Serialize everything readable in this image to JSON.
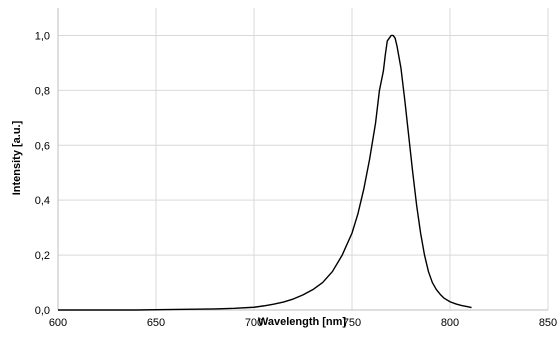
{
  "chart_data": {
    "type": "line",
    "title": "",
    "xlabel": "Wavelength [nm]",
    "ylabel": "Intensity [a.u.]",
    "xlim": [
      600,
      850
    ],
    "ylim": [
      0.0,
      1.1
    ],
    "x_ticks": [
      600,
      650,
      700,
      750,
      800,
      850
    ],
    "x_tick_labels": [
      "600",
      "650",
      "700",
      "750",
      "800",
      "850"
    ],
    "y_ticks": [
      0.0,
      0.2,
      0.4,
      0.6,
      0.8,
      1.0
    ],
    "y_tick_labels": [
      "0,0",
      "0,2",
      "0,4",
      "0,6",
      "0,8",
      "1,0"
    ],
    "grid": true,
    "legend": "none",
    "colors": {
      "line": "#000000",
      "grid": "#d9d9d9",
      "axis": "#bfbfbf"
    },
    "series": [
      {
        "x": [
          600,
          620,
          640,
          660,
          680,
          690,
          700,
          705,
          710,
          715,
          720,
          725,
          730,
          735,
          740,
          745,
          750,
          753,
          756,
          759,
          762,
          764,
          766,
          767,
          768,
          769,
          770,
          771,
          772,
          773,
          775,
          777,
          779,
          781,
          783,
          785,
          787,
          789,
          791,
          793,
          795,
          797,
          800,
          803,
          806,
          809,
          811
        ],
        "y": [
          0.0,
          0.0,
          0.0,
          0.002,
          0.004,
          0.006,
          0.01,
          0.015,
          0.021,
          0.029,
          0.04,
          0.055,
          0.074,
          0.1,
          0.14,
          0.2,
          0.28,
          0.35,
          0.44,
          0.55,
          0.68,
          0.8,
          0.87,
          0.93,
          0.98,
          0.99,
          1.0,
          1.0,
          0.99,
          0.96,
          0.88,
          0.76,
          0.63,
          0.5,
          0.38,
          0.28,
          0.2,
          0.14,
          0.1,
          0.075,
          0.057,
          0.043,
          0.03,
          0.022,
          0.016,
          0.012,
          0.009
        ]
      }
    ]
  }
}
